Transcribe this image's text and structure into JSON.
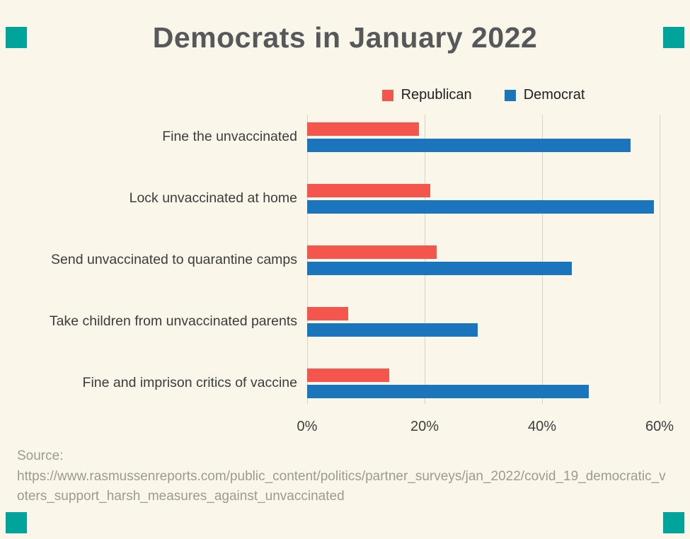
{
  "page": {
    "background": "#faf6ea",
    "accent_color": "#00a49b"
  },
  "chart_data": {
    "type": "bar",
    "orientation": "horizontal",
    "title": "Democrats in January 2022",
    "categories": [
      "Fine the unvaccinated",
      "Lock unvaccinated at home",
      "Send unvaccinated to quarantine camps",
      "Take children from unvaccinated parents",
      "Fine and imprison critics of vaccine"
    ],
    "series": [
      {
        "name": "Republican",
        "color": "#f4564e",
        "values": [
          19,
          21,
          22,
          7,
          14
        ]
      },
      {
        "name": "Democrat",
        "color": "#1b75bc",
        "values": [
          55,
          59,
          45,
          29,
          48
        ]
      }
    ],
    "xlabel": "",
    "ylabel": "",
    "xlim": [
      0,
      60
    ],
    "x_ticks": [
      {
        "label": "0%",
        "value": 0
      },
      {
        "label": "20%",
        "value": 20
      },
      {
        "label": "40%",
        "value": 40
      },
      {
        "label": "60%",
        "value": 60
      }
    ],
    "grid": true,
    "legend_position": "top"
  },
  "source": {
    "label": "Source:",
    "url": "https://www.rasmussenreports.com/public_content/politics/partner_surveys/jan_2022/covid_19_democratic_voters_support_harsh_measures_against_unvaccinated"
  }
}
